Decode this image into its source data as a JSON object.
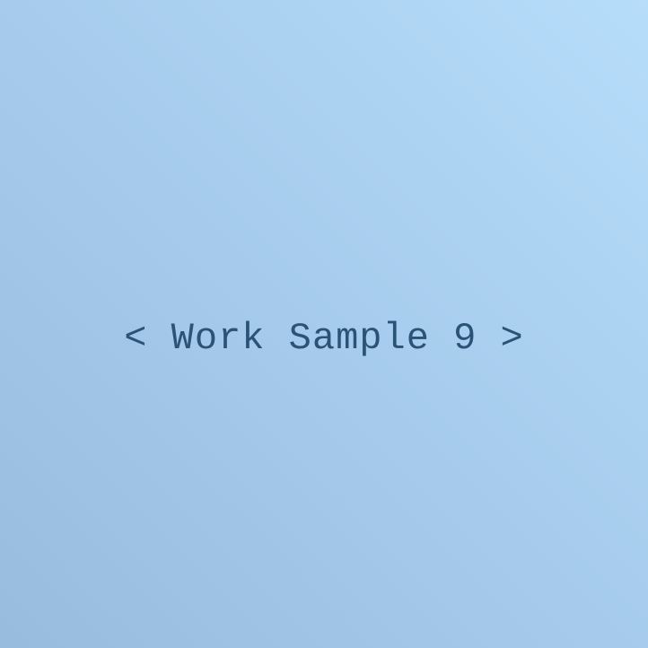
{
  "placeholder": {
    "text": "< Work Sample 9 >"
  },
  "colors": {
    "background_start": "#98bcde",
    "background_end": "#b6ddfa",
    "text": "#2a5376"
  }
}
